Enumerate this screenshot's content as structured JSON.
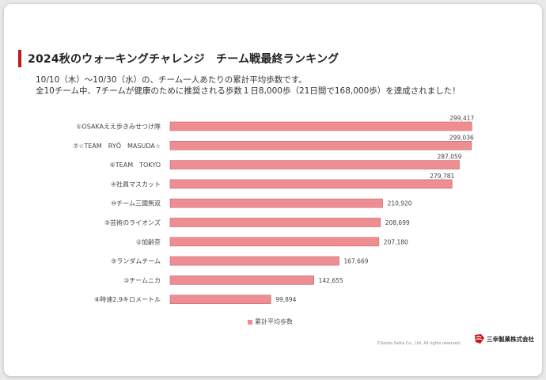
{
  "page": {
    "title": "2024秋のウォーキングチャレンジ　チーム戦最終ランキング",
    "subtitle_line1": "10/10（木）～10/30（水）の、チーム一人あたりの累計平均歩数です。",
    "subtitle_line2": "全10チーム中、7チームが健康のために推奨される歩数１日8,000歩（21日間で168,000歩）を達成されました！",
    "copyright": "©Sanko Seika Co., Ltd. All rights reserved.",
    "logo_text": "三幸製菓株式会社",
    "logo_icon": "sanko-seika-logo-icon",
    "accent_color": "#c8161d"
  },
  "chart_data": {
    "type": "bar",
    "orientation": "horizontal",
    "categories": [
      "①OSAKAええ歩きみせつけ隊",
      "⑦☆TEAM　RYŌ　MASUDA☆",
      "⑥TEAM　TOKYO",
      "④社員マスカット",
      "⑩チーム三國無双",
      "⑤芸術のライオンズ",
      "②加齢奈",
      "⑨ランダムチーム",
      "③チームニカ",
      "⑧時速2.9キロメートル"
    ],
    "series": [
      {
        "name": "累計平均歩数",
        "color": "#ee8e93",
        "values": [
          299417,
          299036,
          287059,
          279781,
          210920,
          208699,
          207180,
          167669,
          142655,
          99894
        ],
        "value_labels": [
          "299,417",
          "299,036",
          "287,059",
          "279,781",
          "210,920",
          "208,699",
          "207,180",
          "167,669",
          "142,655",
          "99,894"
        ]
      }
    ],
    "xlim": [
      0,
      300000
    ],
    "legend": "bottom-center",
    "grid": false,
    "title": "",
    "xlabel": "",
    "ylabel": ""
  }
}
